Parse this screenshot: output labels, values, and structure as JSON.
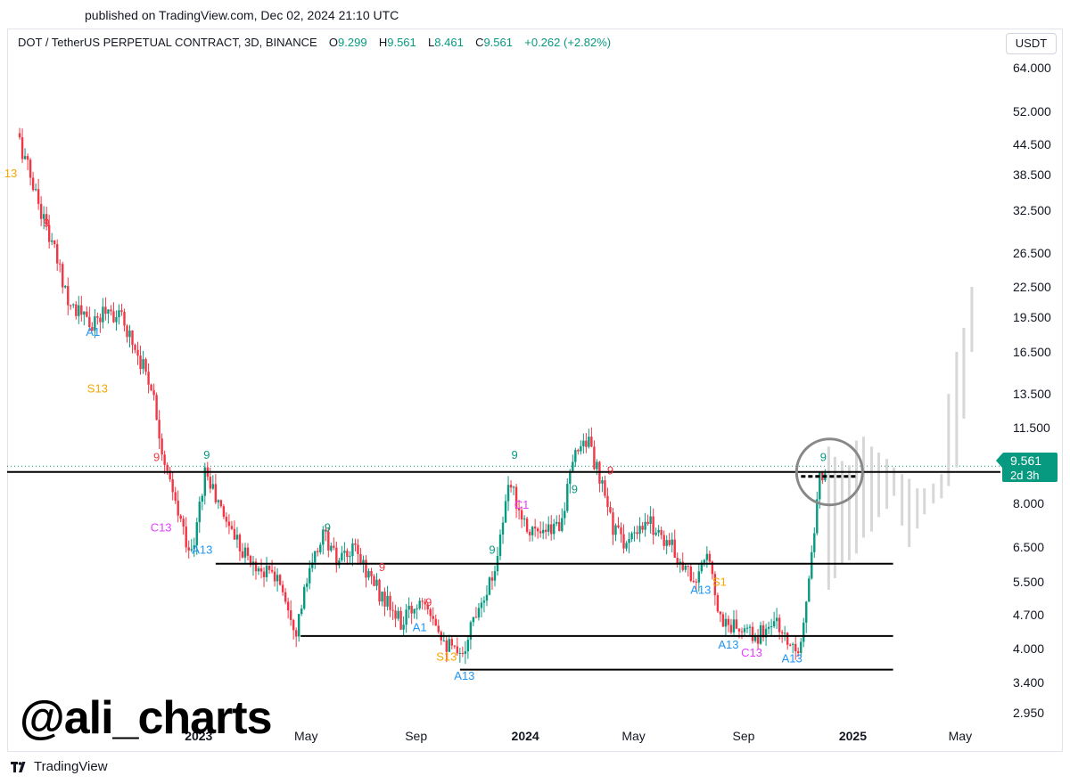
{
  "header": {
    "published": "published on TradingView.com, Dec 02, 2024 21:10 UTC"
  },
  "legend": {
    "symbol": "DOT / TetherUS PERPETUAL CONTRACT, 3D, BINANCE",
    "o_label": "O",
    "o_value": "9.299",
    "h_label": "H",
    "h_value": "9.561",
    "l_label": "L",
    "l_value": "8.461",
    "c_label": "C",
    "c_value": "9.561",
    "change": "+0.262 (+2.82%)"
  },
  "currency_button": "USDT",
  "price_tag": {
    "price": "9.561",
    "countdown": "2d 3h"
  },
  "watermark": "@ali_charts",
  "logo_text": "TradingView",
  "colors": {
    "up": "#089981",
    "down": "#f23645",
    "grid_line": "#000000",
    "orange": "#f7a600",
    "cyan": "#2196f3",
    "magenta": "#e040fb",
    "projection": "#d7d7d7"
  },
  "chart_data": {
    "type": "candlestick",
    "y_scale": "log",
    "ylim": [
      2.8,
      68
    ],
    "y_ticks": [
      "64.000",
      "52.000",
      "44.500",
      "38.500",
      "32.500",
      "26.500",
      "22.500",
      "19.500",
      "16.500",
      "13.500",
      "11.500",
      "8.000",
      "6.500",
      "5.500",
      "4.700",
      "4.000",
      "3.400",
      "2.950"
    ],
    "x_ticks": [
      "2023",
      "May",
      "Sep",
      "2024",
      "May",
      "Sep",
      "2025",
      "May"
    ],
    "x_tick_bold": [
      true,
      false,
      false,
      true,
      false,
      false,
      true,
      false
    ],
    "path": [
      {
        "t": "2022-06-15",
        "p": 45
      },
      {
        "t": "2022-07-10",
        "p": 32
      },
      {
        "t": "2022-08-10",
        "p": 21
      },
      {
        "t": "2022-09-05",
        "p": 18.5
      },
      {
        "t": "2022-09-20",
        "p": 20.5
      },
      {
        "t": "2022-10-10",
        "p": 19
      },
      {
        "t": "2022-11-10",
        "p": 14
      },
      {
        "t": "2022-11-25",
        "p": 9.4
      },
      {
        "t": "2022-12-10",
        "p": 7.5
      },
      {
        "t": "2022-12-25",
        "p": 6.2
      },
      {
        "t": "2023-01-08",
        "p": 9.4
      },
      {
        "t": "2023-01-25",
        "p": 7.8
      },
      {
        "t": "2023-03-01",
        "p": 6.0
      },
      {
        "t": "2023-04-01",
        "p": 5.6
      },
      {
        "t": "2023-04-20",
        "p": 4.4
      },
      {
        "t": "2023-05-01",
        "p": 5.4
      },
      {
        "t": "2023-05-20",
        "p": 7.0
      },
      {
        "t": "2023-06-05",
        "p": 6.0
      },
      {
        "t": "2023-06-25",
        "p": 6.4
      },
      {
        "t": "2023-07-20",
        "p": 5.3
      },
      {
        "t": "2023-08-15",
        "p": 4.5
      },
      {
        "t": "2023-09-10",
        "p": 5.2
      },
      {
        "t": "2023-10-05",
        "p": 4.1
      },
      {
        "t": "2023-10-20",
        "p": 3.8
      },
      {
        "t": "2023-11-10",
        "p": 5.0
      },
      {
        "t": "2023-11-25",
        "p": 5.6
      },
      {
        "t": "2023-12-15",
        "p": 8.8
      },
      {
        "t": "2024-01-01",
        "p": 7.3
      },
      {
        "t": "2024-01-20",
        "p": 6.8
      },
      {
        "t": "2024-02-10",
        "p": 7.4
      },
      {
        "t": "2024-02-28",
        "p": 10.5
      },
      {
        "t": "2024-03-10",
        "p": 11.0
      },
      {
        "t": "2024-03-25",
        "p": 8.8
      },
      {
        "t": "2024-04-10",
        "p": 7.0
      },
      {
        "t": "2024-04-25",
        "p": 6.6
      },
      {
        "t": "2024-05-20",
        "p": 7.3
      },
      {
        "t": "2024-06-10",
        "p": 6.6
      },
      {
        "t": "2024-06-25",
        "p": 6.0
      },
      {
        "t": "2024-07-10",
        "p": 5.5
      },
      {
        "t": "2024-07-25",
        "p": 6.3
      },
      {
        "t": "2024-08-05",
        "p": 4.6
      },
      {
        "t": "2024-08-25",
        "p": 4.4
      },
      {
        "t": "2024-09-15",
        "p": 4.2
      },
      {
        "t": "2024-10-05",
        "p": 4.6
      },
      {
        "t": "2024-10-20",
        "p": 4.1
      },
      {
        "t": "2024-11-05",
        "p": 4.1
      },
      {
        "t": "2024-11-12",
        "p": 5.5
      },
      {
        "t": "2024-11-18",
        "p": 6.5
      },
      {
        "t": "2024-11-24",
        "p": 8.8
      },
      {
        "t": "2024-12-01",
        "p": 9.561
      }
    ],
    "horizontal_levels": [
      {
        "price": 9.3,
        "from": "2022-06-01",
        "to": "2025-07-01"
      },
      {
        "price": 6.0,
        "from": "2023-01-20",
        "to": "2025-02-15"
      },
      {
        "price": 4.25,
        "from": "2023-04-25",
        "to": "2025-02-15"
      },
      {
        "price": 3.62,
        "from": "2023-10-20",
        "to": "2025-02-15"
      }
    ],
    "last_price": 9.561,
    "highlight_circle": {
      "t": "2024-12-02",
      "p": 9.3
    },
    "annotations": [
      {
        "text": "13",
        "t": "2022-06-05",
        "p": 38,
        "color": "orange"
      },
      {
        "text": "9",
        "t": "2022-07-15",
        "p": 30,
        "color": "down"
      },
      {
        "text": "A1",
        "t": "2022-09-05",
        "p": 17.8,
        "color": "cyan"
      },
      {
        "text": "S13",
        "t": "2022-09-10",
        "p": 13.6,
        "color": "orange"
      },
      {
        "text": "9",
        "t": "2022-11-15",
        "p": 9.8,
        "color": "down"
      },
      {
        "text": "9",
        "t": "2023-01-10",
        "p": 9.9,
        "color": "up"
      },
      {
        "text": "C13",
        "t": "2022-11-20",
        "p": 7.0,
        "color": "magenta"
      },
      {
        "text": "A13",
        "t": "2023-01-05",
        "p": 6.3,
        "color": "cyan"
      },
      {
        "text": "9",
        "t": "2023-05-25",
        "p": 7.0,
        "color": "up"
      },
      {
        "text": "9",
        "t": "2023-07-25",
        "p": 5.8,
        "color": "down"
      },
      {
        "text": "9",
        "t": "2023-09-15",
        "p": 4.9,
        "color": "down"
      },
      {
        "text": "A1",
        "t": "2023-09-05",
        "p": 4.35,
        "color": "cyan"
      },
      {
        "text": "S13",
        "t": "2023-10-05",
        "p": 3.78,
        "color": "orange"
      },
      {
        "text": "A13",
        "t": "2023-10-25",
        "p": 3.45,
        "color": "cyan"
      },
      {
        "text": "9",
        "t": "2023-11-25",
        "p": 6.3,
        "color": "up"
      },
      {
        "text": "9",
        "t": "2023-12-20",
        "p": 9.9,
        "color": "up"
      },
      {
        "text": "C1",
        "t": "2023-12-28",
        "p": 7.8,
        "color": "magenta"
      },
      {
        "text": "9",
        "t": "2024-02-25",
        "p": 8.4,
        "color": "up"
      },
      {
        "text": "9",
        "t": "2024-04-05",
        "p": 9.2,
        "color": "down"
      },
      {
        "text": "A13",
        "t": "2024-07-15",
        "p": 5.2,
        "color": "cyan"
      },
      {
        "text": "S1",
        "t": "2024-08-05",
        "p": 5.4,
        "color": "orange"
      },
      {
        "text": "A13",
        "t": "2024-08-15",
        "p": 4.0,
        "color": "cyan"
      },
      {
        "text": "C13",
        "t": "2024-09-10",
        "p": 3.85,
        "color": "magenta"
      },
      {
        "text": "A13",
        "t": "2024-10-25",
        "p": 3.75,
        "color": "cyan"
      },
      {
        "text": "9",
        "t": "2024-11-29",
        "p": 9.8,
        "color": "up"
      }
    ],
    "projection": [
      {
        "t": "2024-12-05",
        "high": 10.5,
        "low": 5.3
      },
      {
        "t": "2024-12-12",
        "high": 10.0,
        "low": 5.6
      },
      {
        "t": "2024-12-20",
        "high": 9.8,
        "low": 6.0
      },
      {
        "t": "2024-12-28",
        "high": 9.6,
        "low": 6.1
      },
      {
        "t": "2025-01-05",
        "high": 10.8,
        "low": 6.3
      },
      {
        "t": "2025-01-13",
        "high": 11.0,
        "low": 6.8
      },
      {
        "t": "2025-01-22",
        "high": 10.5,
        "low": 7.0
      },
      {
        "t": "2025-01-30",
        "high": 10.2,
        "low": 7.5
      },
      {
        "t": "2025-02-08",
        "high": 9.9,
        "low": 7.8
      },
      {
        "t": "2025-02-16",
        "high": 9.5,
        "low": 8.3
      },
      {
        "t": "2025-02-25",
        "high": 9.2,
        "low": 7.2
      },
      {
        "t": "2025-03-05",
        "high": 9.0,
        "low": 6.5
      },
      {
        "t": "2025-03-14",
        "high": 8.6,
        "low": 7.1
      },
      {
        "t": "2025-03-22",
        "high": 8.6,
        "low": 7.6
      },
      {
        "t": "2025-04-01",
        "high": 8.8,
        "low": 8.0
      },
      {
        "t": "2025-04-10",
        "high": 9.2,
        "low": 8.2
      },
      {
        "t": "2025-04-18",
        "high": 13.5,
        "low": 8.7
      },
      {
        "t": "2025-04-27",
        "high": 16.5,
        "low": 9.5
      },
      {
        "t": "2025-05-05",
        "high": 18.5,
        "low": 12.0
      },
      {
        "t": "2025-05-14",
        "high": 22.5,
        "low": 16.5
      }
    ]
  }
}
